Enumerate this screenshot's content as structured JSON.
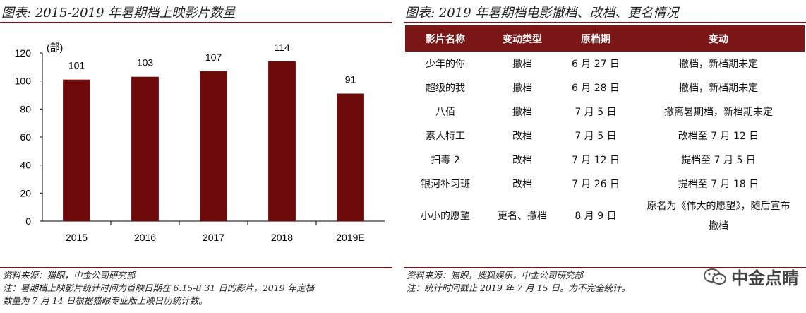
{
  "left": {
    "title": "图表: 2015-2019 年暑期档上映影片数量",
    "source_lines": [
      "资料来源：猫眼，中金公司研究部",
      "注：暑期档上映影片统计时间为首映日期在 6.15-8.31 日的影片，2019 年定档",
      "数量为 7 月 14 日根据猫眼专业版上映日历统计数。"
    ]
  },
  "chart_data": {
    "type": "bar",
    "title": "图表: 2015-2019 年暑期档上映影片数量",
    "categories": [
      "2015",
      "2016",
      "2017",
      "2018",
      "2019E"
    ],
    "values": [
      101,
      103,
      107,
      114,
      91
    ],
    "data_labels": [
      "101",
      "103",
      "107",
      "114",
      "91"
    ],
    "ylabel": "(部)",
    "ylim": [
      0,
      120
    ],
    "yticks": [
      "0",
      "20",
      "40",
      "60",
      "80",
      "100",
      "120"
    ],
    "bar_color": "#6e0a0a",
    "grid": false
  },
  "right": {
    "title": "图表: 2019 年暑期档电影撤档、改档、更名情况",
    "table": {
      "headers": [
        "影片名称",
        "变动类型",
        "原档期",
        "变动"
      ],
      "rows": [
        [
          "少年的你",
          "撤档",
          "6 月 27 日",
          "撤档，新档期未定"
        ],
        [
          "超级的我",
          "撤档",
          "6 月 28 日",
          "撤档，新档期未定"
        ],
        [
          "八佰",
          "撤档",
          "7 月 5 日",
          "撤离暑期档，新档期未定"
        ],
        [
          "素人特工",
          "改档",
          "7 月 5 日",
          "改档至 7 月 12 日"
        ],
        [
          "扫毒 2",
          "改档",
          "7 月 12 日",
          "提档至 7 月 5 日"
        ],
        [
          "银河补习班",
          "改档",
          "7 月 26 日",
          "提档至 7 月 18 日"
        ],
        [
          "小小的愿望",
          "更名、撤档",
          "8 月 9 日",
          "原名为《伟大的愿望》，随后宣布撤档"
        ]
      ]
    },
    "source_lines": [
      "资料来源：猫眼，搜狐娱乐，中金公司研究部",
      "注：统计时间截止 2019 年 7 月 15 日。为不完全统计。"
    ]
  },
  "watermark": {
    "text": "中金点睛",
    "icon": "wechat-icon"
  },
  "colors": {
    "accent": "#7b1717",
    "bar": "#6e0a0a"
  }
}
